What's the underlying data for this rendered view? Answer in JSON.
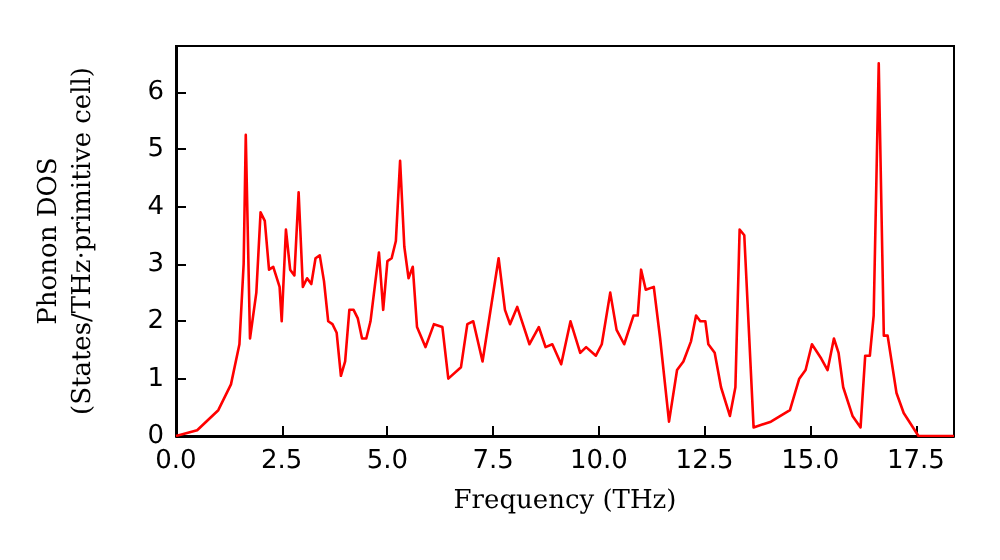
{
  "chart_data": {
    "type": "line",
    "xlabel": "Frequency (THz)",
    "ylabel": "Phonon DOS\n(States/THz·primitive cell)",
    "xlim": [
      0,
      18.4
    ],
    "ylim": [
      0,
      6.8
    ],
    "xticks": [
      {
        "value": 0,
        "label": "0.0"
      },
      {
        "value": 2.5,
        "label": "2.5"
      },
      {
        "value": 5,
        "label": "5.0"
      },
      {
        "value": 7.5,
        "label": "7.5"
      },
      {
        "value": 10,
        "label": "10.0"
      },
      {
        "value": 12.5,
        "label": "12.5"
      },
      {
        "value": 15,
        "label": "15.0"
      },
      {
        "value": 17.5,
        "label": "17.5"
      }
    ],
    "yticks": [
      0,
      1,
      2,
      3,
      4,
      5,
      6
    ],
    "grid": false,
    "marker": "none",
    "line_style": "solid",
    "series": [
      {
        "color": "#ff0000",
        "x": [
          0,
          0.5,
          1.0,
          1.3,
          1.5,
          1.6,
          1.65,
          1.75,
          1.9,
          2.0,
          2.1,
          2.2,
          2.3,
          2.45,
          2.5,
          2.6,
          2.7,
          2.8,
          2.9,
          3.0,
          3.1,
          3.2,
          3.3,
          3.4,
          3.5,
          3.6,
          3.7,
          3.8,
          3.9,
          4.0,
          4.1,
          4.2,
          4.3,
          4.4,
          4.5,
          4.6,
          4.8,
          4.9,
          5.0,
          5.1,
          5.2,
          5.3,
          5.4,
          5.5,
          5.6,
          5.7,
          5.9,
          6.0,
          6.1,
          6.3,
          6.44,
          6.74,
          6.89,
          7.03,
          7.25,
          7.63,
          7.78,
          7.9,
          8.07,
          8.36,
          8.58,
          8.74,
          8.9,
          9.11,
          9.33,
          9.56,
          9.7,
          9.93,
          10.07,
          10.27,
          10.42,
          10.6,
          10.82,
          10.92,
          11.0,
          11.11,
          11.3,
          11.45,
          11.66,
          11.85,
          12.0,
          12.18,
          12.3,
          12.4,
          12.52,
          12.59,
          12.74,
          12.89,
          13.1,
          13.23,
          13.33,
          13.44,
          13.66,
          14.07,
          14.52,
          14.74,
          14.89,
          15.04,
          15.26,
          15.41,
          15.56,
          15.67,
          15.78,
          16.0,
          16.19,
          16.3,
          16.41,
          16.5,
          16.62,
          16.74,
          16.83,
          17.04,
          17.21,
          17.56,
          18.4
        ],
        "values": [
          0,
          0.1,
          0.45,
          0.9,
          1.6,
          3.0,
          5.25,
          1.7,
          2.5,
          3.9,
          3.75,
          2.9,
          2.95,
          2.6,
          2.0,
          3.6,
          2.9,
          2.8,
          4.25,
          2.6,
          2.75,
          2.65,
          3.1,
          3.15,
          2.7,
          2.0,
          1.95,
          1.8,
          1.05,
          1.3,
          2.2,
          2.2,
          2.05,
          1.7,
          1.7,
          2.0,
          3.2,
          2.2,
          3.05,
          3.1,
          3.4,
          4.8,
          3.3,
          2.75,
          2.95,
          1.9,
          1.55,
          1.75,
          1.95,
          1.9,
          1.0,
          1.2,
          1.95,
          2.0,
          1.3,
          3.1,
          2.2,
          1.95,
          2.25,
          1.6,
          1.9,
          1.55,
          1.6,
          1.25,
          2.0,
          1.45,
          1.55,
          1.4,
          1.6,
          2.5,
          1.85,
          1.6,
          2.1,
          2.1,
          2.9,
          2.55,
          2.6,
          1.7,
          0.25,
          1.15,
          1.3,
          1.65,
          2.1,
          2.0,
          2.0,
          1.6,
          1.45,
          0.85,
          0.35,
          0.85,
          3.6,
          3.5,
          0.15,
          0.25,
          0.45,
          1.0,
          1.15,
          1.6,
          1.35,
          1.15,
          1.7,
          1.45,
          0.85,
          0.35,
          0.15,
          1.4,
          1.4,
          2.1,
          6.5,
          1.75,
          1.75,
          0.75,
          0.4,
          0,
          0
        ]
      }
    ]
  }
}
